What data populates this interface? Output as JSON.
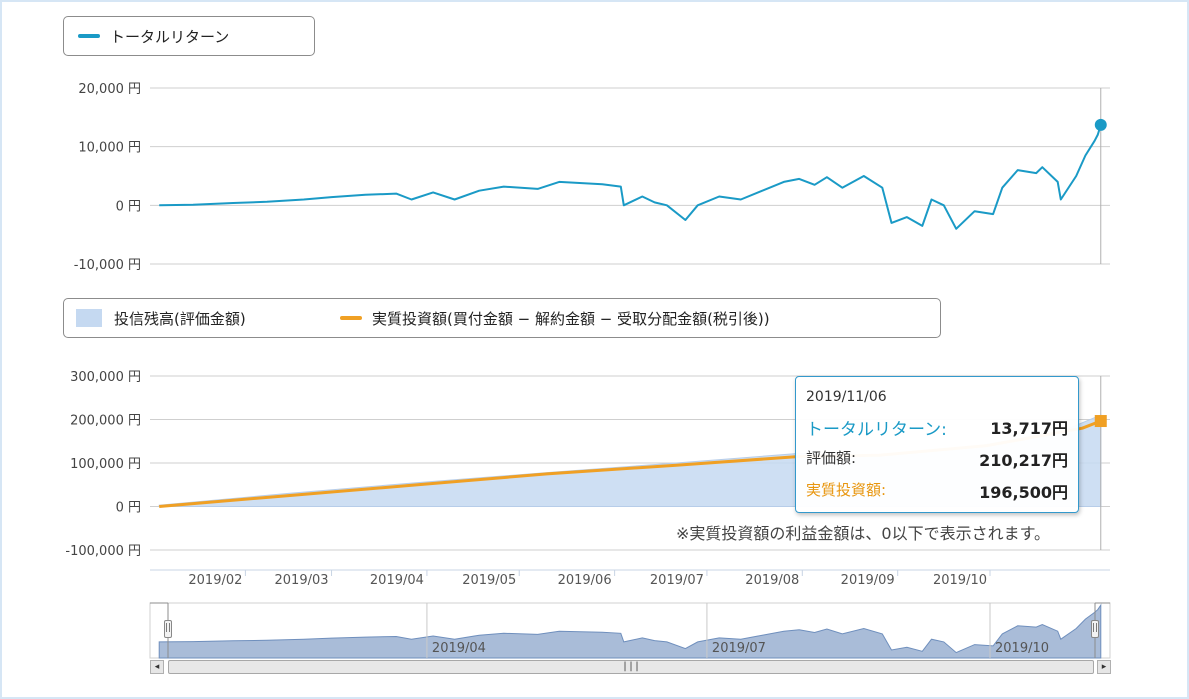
{
  "legend_top": {
    "items": [
      {
        "label": "トータルリターン",
        "color": "#1a9ac6"
      }
    ]
  },
  "legend_bottom": {
    "items": [
      {
        "label": "投信残高(評価金額)",
        "color": "#c5d9f1",
        "kind": "area"
      },
      {
        "label": "実質投資額(買付金額 − 解約金額 − 受取分配金額(税引後))",
        "color": "#f0a024",
        "kind": "line"
      }
    ]
  },
  "chart_data": [
    {
      "type": "line",
      "x_unit": "date",
      "x_range": [
        "2019-01-04",
        "2019-11-06"
      ],
      "ylim": [
        -10000,
        20000
      ],
      "y_ticks": [
        "20,000 円",
        "10,000 円",
        "0 円",
        "-10,000 円"
      ],
      "grid": true,
      "legend": "top-left",
      "series": [
        {
          "name": "トータルリターン",
          "color": "#1a9ac6",
          "points": [
            [
              "2019-01-04",
              0
            ],
            [
              "2019-01-15",
              100
            ],
            [
              "2019-01-28",
              400
            ],
            [
              "2019-02-08",
              600
            ],
            [
              "2019-02-20",
              1000
            ],
            [
              "2019-03-01",
              1400
            ],
            [
              "2019-03-12",
              1800
            ],
            [
              "2019-03-22",
              2000
            ],
            [
              "2019-03-27",
              1000
            ],
            [
              "2019-04-03",
              2200
            ],
            [
              "2019-04-10",
              1000
            ],
            [
              "2019-04-18",
              2500
            ],
            [
              "2019-04-26",
              3200
            ],
            [
              "2019-05-07",
              2800
            ],
            [
              "2019-05-14",
              4000
            ],
            [
              "2019-05-28",
              3600
            ],
            [
              "2019-06-03",
              3200
            ],
            [
              "2019-06-04",
              0
            ],
            [
              "2019-06-10",
              1500
            ],
            [
              "2019-06-14",
              500
            ],
            [
              "2019-06-18",
              0
            ],
            [
              "2019-06-24",
              -2500
            ],
            [
              "2019-06-28",
              0
            ],
            [
              "2019-07-05",
              1500
            ],
            [
              "2019-07-12",
              1000
            ],
            [
              "2019-07-19",
              2500
            ],
            [
              "2019-07-26",
              4000
            ],
            [
              "2019-07-31",
              4500
            ],
            [
              "2019-08-05",
              3500
            ],
            [
              "2019-08-09",
              4800
            ],
            [
              "2019-08-14",
              3000
            ],
            [
              "2019-08-21",
              5000
            ],
            [
              "2019-08-27",
              3000
            ],
            [
              "2019-08-30",
              -3000
            ],
            [
              "2019-09-04",
              -2000
            ],
            [
              "2019-09-09",
              -3500
            ],
            [
              "2019-09-12",
              1000
            ],
            [
              "2019-09-16",
              0
            ],
            [
              "2019-09-20",
              -4000
            ],
            [
              "2019-09-26",
              -1000
            ],
            [
              "2019-10-02",
              -1500
            ],
            [
              "2019-10-05",
              3000
            ],
            [
              "2019-10-10",
              6000
            ],
            [
              "2019-10-16",
              5500
            ],
            [
              "2019-10-18",
              6500
            ],
            [
              "2019-10-23",
              4000
            ],
            [
              "2019-10-24",
              1000
            ],
            [
              "2019-10-29",
              5000
            ],
            [
              "2019-11-01",
              8500
            ],
            [
              "2019-11-04",
              11000
            ],
            [
              "2019-11-05",
              12000
            ],
            [
              "2019-11-06",
              13717
            ]
          ]
        }
      ]
    },
    {
      "type": "area",
      "x_unit": "date",
      "x_range": [
        "2019-01-04",
        "2019-11-06"
      ],
      "ylim": [
        -100000,
        300000
      ],
      "y_ticks": [
        "300,000 円",
        "200,000 円",
        "100,000 円",
        "0 円",
        "-100,000 円"
      ],
      "x_ticks": [
        "2019/02",
        "2019/03",
        "2019/04",
        "2019/05",
        "2019/06",
        "2019/07",
        "2019/08",
        "2019/09",
        "2019/10"
      ],
      "grid": true,
      "legend": "top-left",
      "series": [
        {
          "name": "投信残高(評価金額)",
          "color": "#c5d9f1",
          "points": [
            [
              "2019-01-04",
              3000
            ],
            [
              "2019-02-15",
              30000
            ],
            [
              "2019-03-29",
              55000
            ],
            [
              "2019-05-10",
              78000
            ],
            [
              "2019-06-21",
              100000
            ],
            [
              "2019-07-31",
              122000
            ],
            [
              "2019-08-26",
              118000
            ],
            [
              "2019-09-20",
              130000
            ],
            [
              "2019-10-25",
              175000
            ],
            [
              "2019-11-06",
              210217
            ]
          ]
        },
        {
          "name": "実質投資額(買付金額 − 解約金額 − 受取分配金額(税引後))",
          "color": "#f0a024",
          "points": [
            [
              "2019-01-04",
              0
            ],
            [
              "2019-02-15",
              25000
            ],
            [
              "2019-03-29",
              50000
            ],
            [
              "2019-05-10",
              75000
            ],
            [
              "2019-06-21",
              95000
            ],
            [
              "2019-07-31",
              115000
            ],
            [
              "2019-08-26",
              118000
            ],
            [
              "2019-09-30",
              140000
            ],
            [
              "2019-10-31",
              180000
            ],
            [
              "2019-11-06",
              196500
            ]
          ]
        }
      ]
    }
  ],
  "navigator": {
    "x_ticks": [
      "2019/04",
      "2019/07",
      "2019/10"
    ],
    "color": "#a9bcd8"
  },
  "tooltip": {
    "date": "2019/11/06",
    "rows": [
      {
        "label": "トータルリターン:",
        "value": "13,717円",
        "color": "#1a9ac6"
      },
      {
        "label": "評価額:",
        "value": "210,217円",
        "color": "#333333"
      },
      {
        "label": "実質投資額:",
        "value": "196,500円",
        "color": "#f0a024"
      }
    ]
  },
  "note": "※実質投資額の利益金額は、0以下で表示されます。",
  "scrollbar": {
    "left_arrow": "◂",
    "right_arrow": "▸",
    "thumb": "|||"
  },
  "handles": {
    "glyph": "||"
  }
}
